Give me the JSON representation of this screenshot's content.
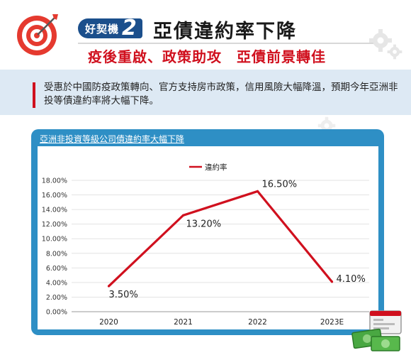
{
  "header": {
    "badge_text": "好契機",
    "badge_number": "2",
    "title": "亞債違約率下降",
    "subtitle": "疫後重啟、政策助攻　亞債前景轉佳"
  },
  "intro": {
    "text": "受惠於中國防疫政策轉向、官方支持房市政策，信用風險大幅降溫，預期今年亞洲非投等債違約率將大幅下降。"
  },
  "colors": {
    "accent_red": "#d0101e",
    "frame_blue": "#2e8fc5",
    "badge_navy": "#1b4f8c"
  },
  "chart_data": {
    "type": "line",
    "title": "亞洲非投資等級公司債違約率大幅下降",
    "categories": [
      "2020",
      "2021",
      "2022",
      "2023E"
    ],
    "series": [
      {
        "name": "違約率",
        "values": [
          3.5,
          13.2,
          16.5,
          4.1
        ],
        "labels": [
          "3.50%",
          "13.20%",
          "16.50%",
          "4.10%"
        ]
      }
    ],
    "y_ticks": [
      "0.00%",
      "2.00%",
      "4.00%",
      "6.00%",
      "8.00%",
      "10.00%",
      "12.00%",
      "14.00%",
      "16.00%",
      "18.00%"
    ],
    "ylim": [
      0,
      18
    ],
    "legend_position": "top",
    "line_color": "#d0101e"
  }
}
